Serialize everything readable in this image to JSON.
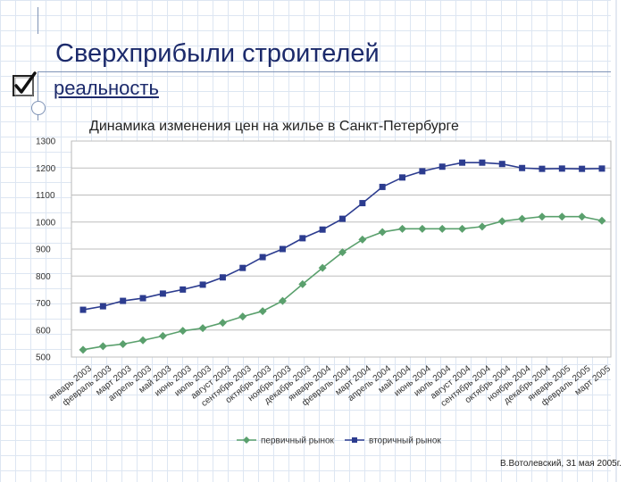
{
  "slide": {
    "title": "Сверхприбыли строителей",
    "subtitle": "реальность",
    "author_note": "В.Вотолевский, 31 мая 2005г."
  },
  "colors": {
    "title": "#1c2a6b",
    "primary_series": "#5aa06d",
    "secondary_series": "#2c3c8f",
    "grid": "#dde6f2"
  },
  "icons": {
    "checkbox": "checkbox-checked-icon"
  },
  "chart_data": {
    "type": "line",
    "title": "Динамика изменения цен на жилье в Санкт-Петербурге",
    "categories": [
      "январь 2003",
      "февраль 2003",
      "март 2003",
      "апрель 2003",
      "май 2003",
      "июнь 2003",
      "июль 2003",
      "август 2003",
      "сентябрь 2003",
      "октябрь 2003",
      "ноябрь 2003",
      "декабрь 2003",
      "январь 2004",
      "февраль 2004",
      "март 2004",
      "апрель 2004",
      "май 2004",
      "июнь 2004",
      "июль 2004",
      "август 2004",
      "сентябрь 2004",
      "октябрь 2004",
      "ноябрь 2004",
      "декабрь 2004",
      "январь 2005",
      "февраль 2005",
      "март 2005"
    ],
    "series": [
      {
        "name": "первичный рынок",
        "color": "#5aa06d",
        "marker": "diamond",
        "values": [
          527,
          540,
          548,
          562,
          578,
          597,
          607,
          627,
          650,
          670,
          708,
          770,
          830,
          888,
          935,
          963,
          975,
          975,
          975,
          975,
          983,
          1003,
          1012,
          1020,
          1020,
          1020,
          1005
        ]
      },
      {
        "name": "вторичный рынок",
        "color": "#2c3c8f",
        "marker": "square",
        "values": [
          675,
          688,
          708,
          718,
          735,
          750,
          768,
          795,
          830,
          870,
          900,
          940,
          972,
          1012,
          1070,
          1130,
          1165,
          1188,
          1205,
          1220,
          1220,
          1215,
          1200,
          1197,
          1198,
          1197,
          1198
        ]
      }
    ],
    "ylim": [
      500,
      1300
    ],
    "yticks": [
      500,
      600,
      700,
      800,
      900,
      1000,
      1100,
      1200,
      1300
    ],
    "grid": "horizontal",
    "legend_position": "bottom"
  }
}
